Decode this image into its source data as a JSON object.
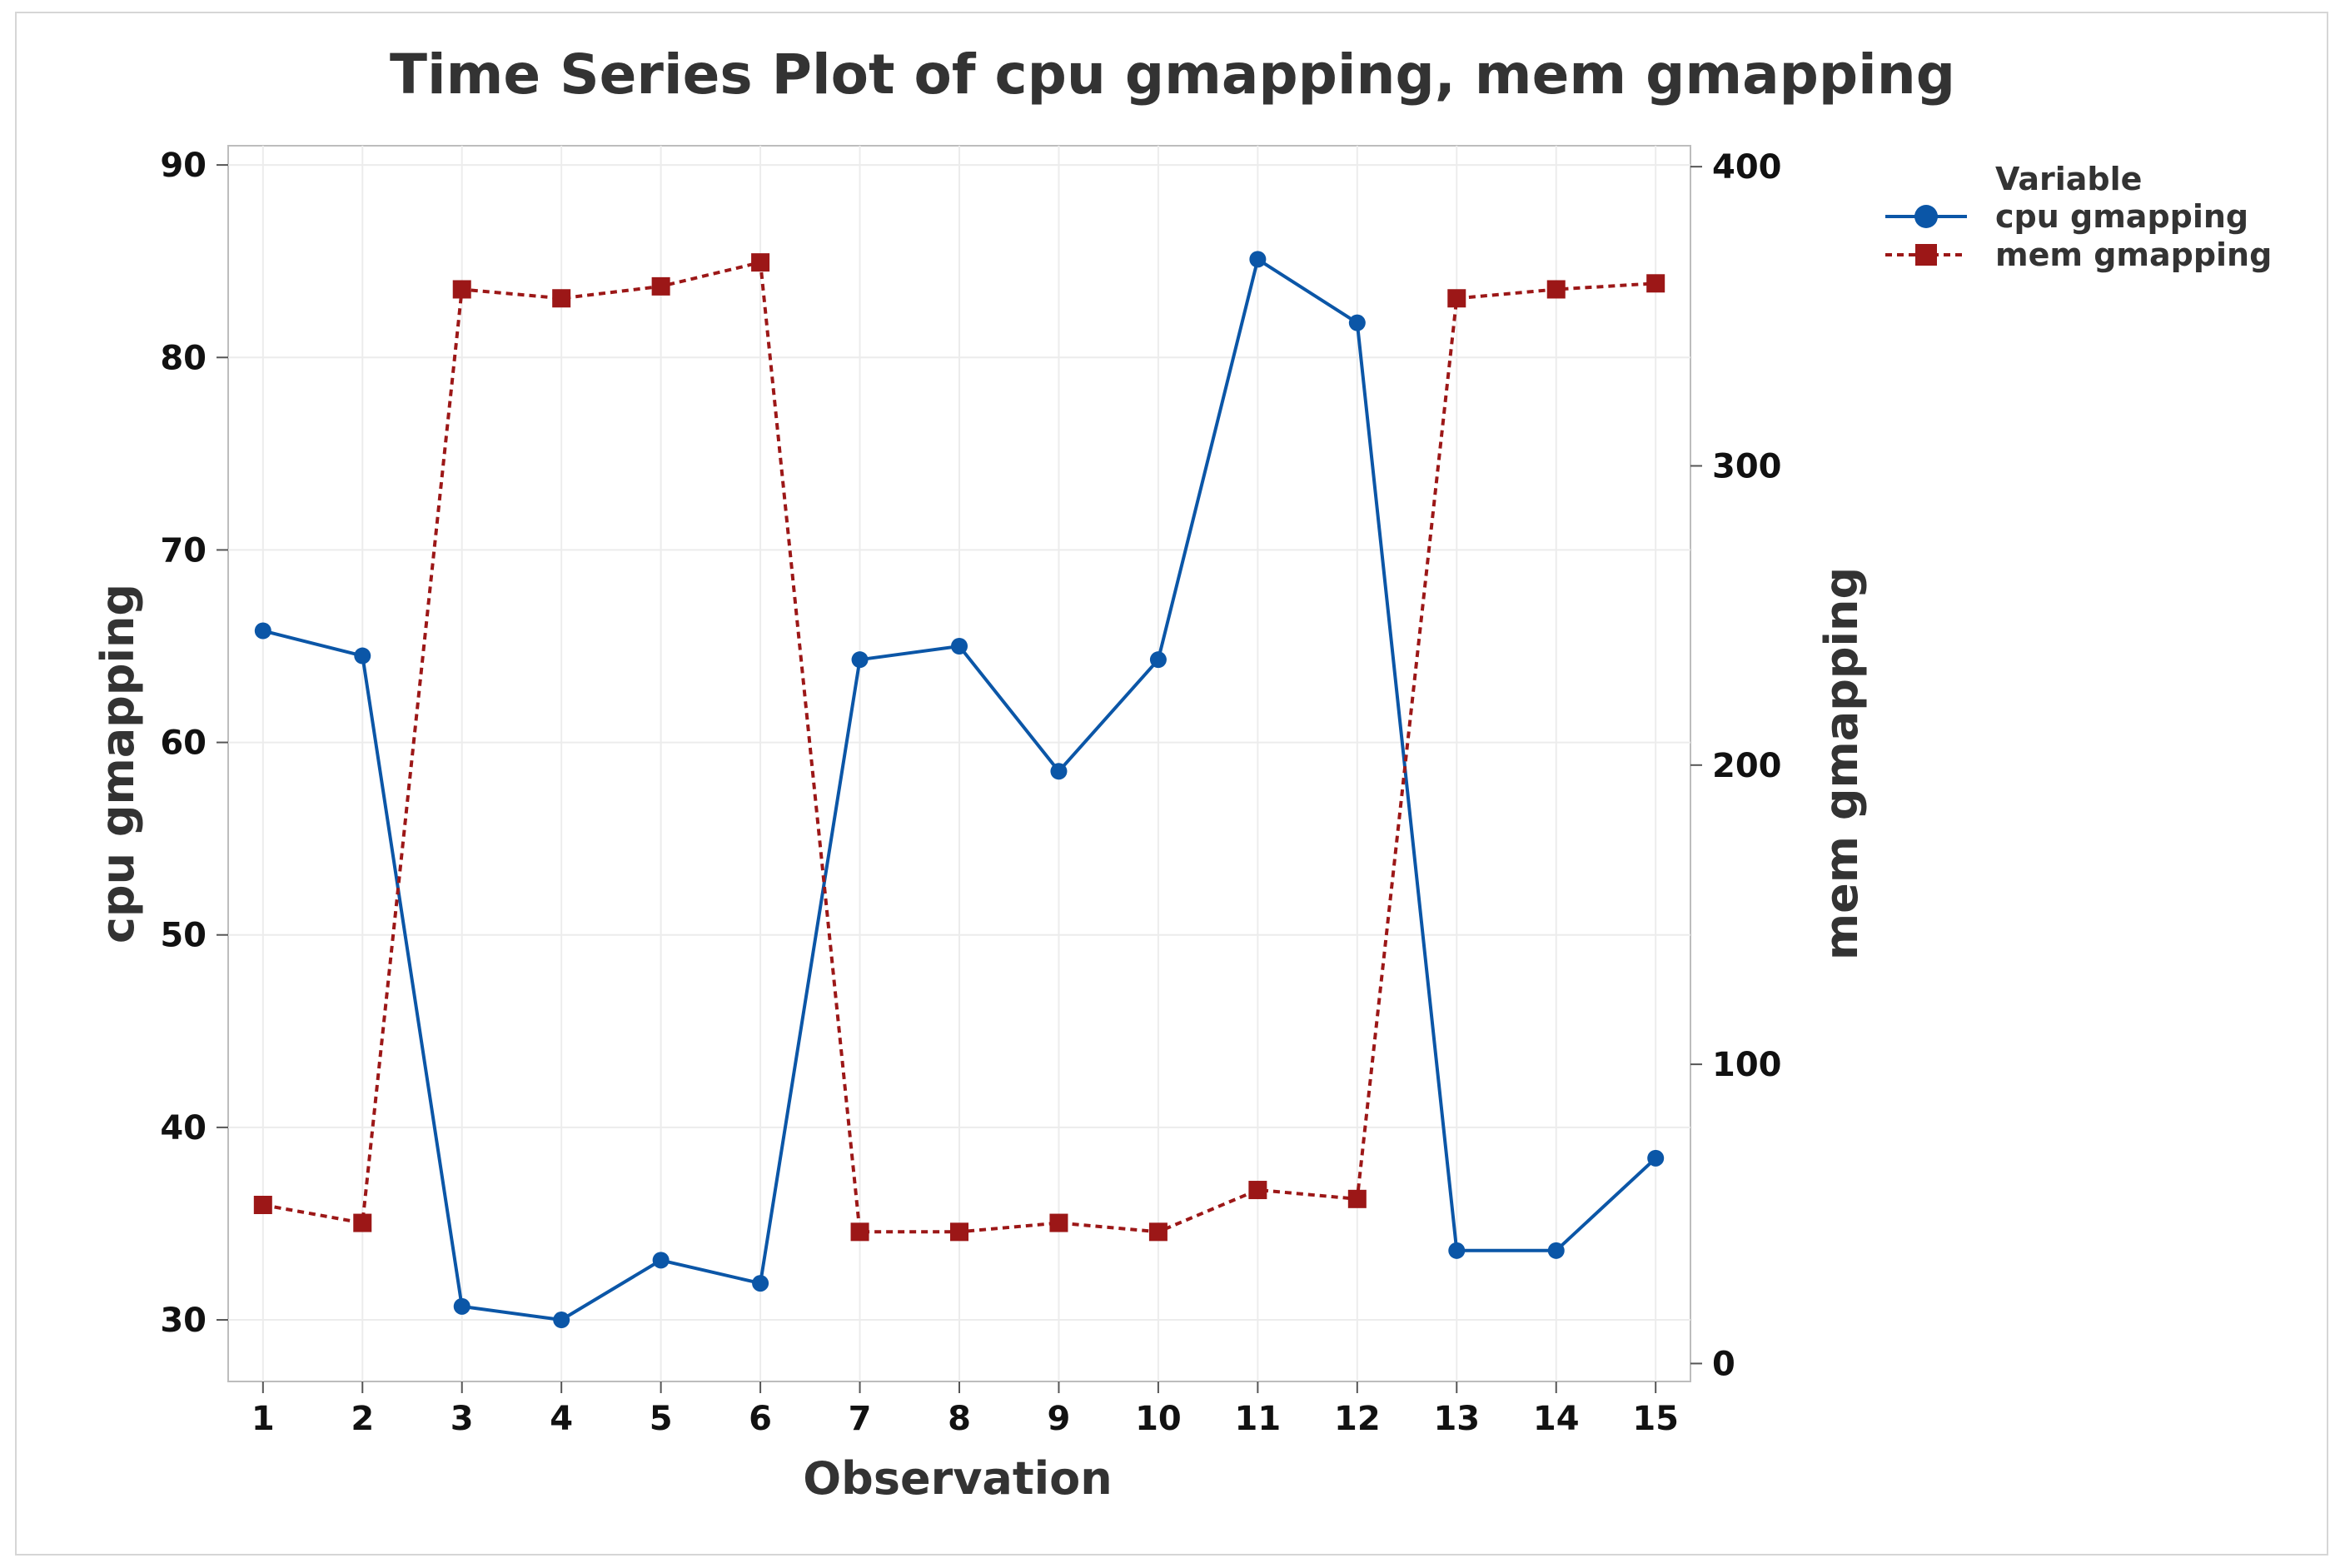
{
  "chart_data": {
    "type": "line",
    "title": "Time Series Plot of cpu gmapping, mem gmapping",
    "xlabel": "Observation",
    "ylabel_left": "cpu gmapping",
    "ylabel_right": "mem gmapping",
    "x": [
      1,
      2,
      3,
      4,
      5,
      6,
      7,
      8,
      9,
      10,
      11,
      12,
      13,
      14,
      15
    ],
    "x_ticks": [
      "1",
      "2",
      "3",
      "4",
      "5",
      "6",
      "7",
      "8",
      "9",
      "10",
      "11",
      "12",
      "13",
      "14",
      "15"
    ],
    "ylim_left": [
      26.8,
      91
    ],
    "yticks_left": [
      "30",
      "40",
      "50",
      "60",
      "70",
      "80",
      "90"
    ],
    "ylim_right": [
      -6,
      407
    ],
    "yticks_right": [
      "0",
      "100",
      "200",
      "300",
      "400"
    ],
    "grid": true,
    "legend_title": "Variable",
    "legend_position": "top-right",
    "series": [
      {
        "name": "cpu gmapping",
        "axis": "left",
        "color": "#0b56a7",
        "marker": "circle",
        "line_style": "solid",
        "values": [
          65.8,
          64.5,
          30.7,
          30.0,
          33.1,
          31.9,
          64.3,
          65.0,
          58.5,
          64.3,
          85.1,
          81.8,
          33.6,
          33.6,
          38.4
        ]
      },
      {
        "name": "mem gmapping",
        "axis": "right",
        "color": "#9c1717",
        "marker": "square",
        "line_style": "dashed",
        "values": [
          53,
          47,
          359,
          356,
          360,
          368,
          44,
          44,
          47,
          44,
          58,
          55,
          356,
          359,
          361
        ]
      }
    ]
  }
}
